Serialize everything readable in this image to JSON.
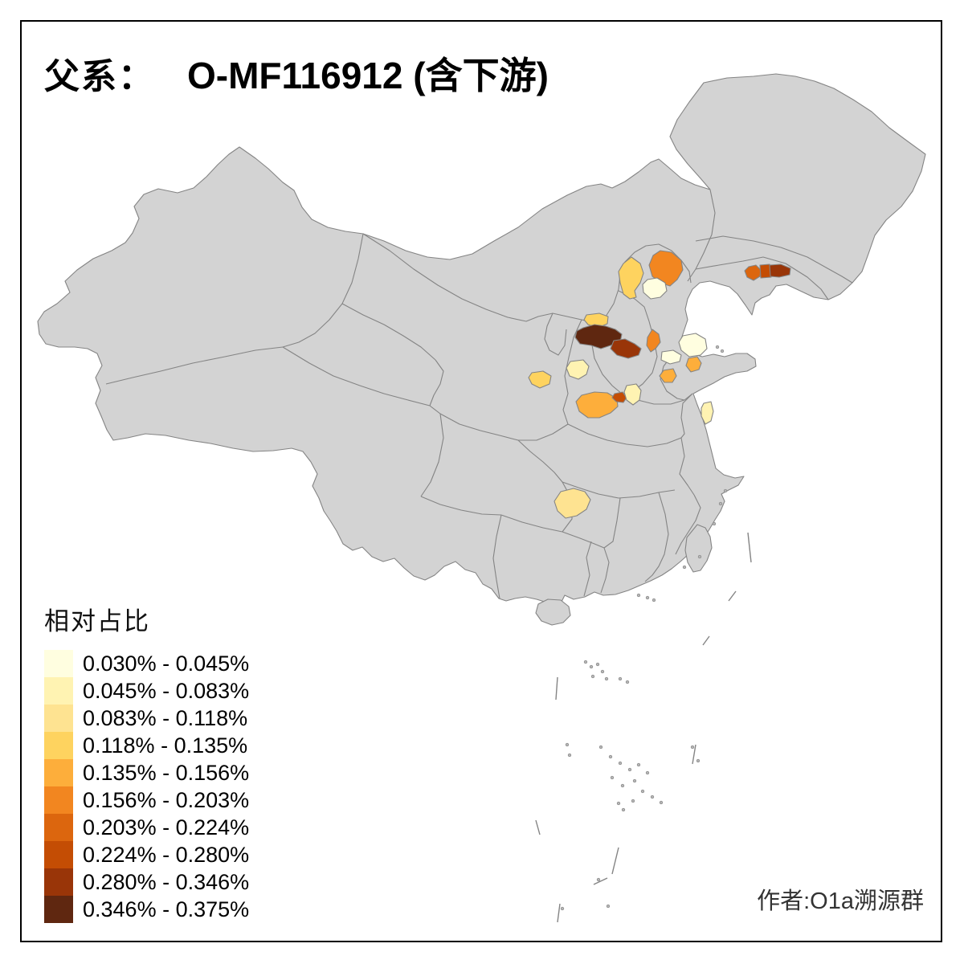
{
  "title": {
    "prefix": "父系：",
    "main": "O-MF116912 (含下游)"
  },
  "attribution": "作者:O1a溯源群",
  "legend": {
    "title": "相对占比",
    "classes": [
      {
        "range": "0.030% - 0.045%",
        "color": "#FFFEE0"
      },
      {
        "range": "0.045% - 0.083%",
        "color": "#FFF3B2"
      },
      {
        "range": "0.083% - 0.118%",
        "color": "#FEE391"
      },
      {
        "range": "0.118% - 0.135%",
        "color": "#FED35F"
      },
      {
        "range": "0.135% - 0.156%",
        "color": "#FDAE3B"
      },
      {
        "range": "0.156% - 0.203%",
        "color": "#F28620"
      },
      {
        "range": "0.203% - 0.224%",
        "color": "#DC660E"
      },
      {
        "range": "0.224% - 0.280%",
        "color": "#C44D04"
      },
      {
        "range": "0.280% - 0.346%",
        "color": "#993508"
      },
      {
        "range": "0.346% - 0.375%",
        "color": "#5F2710"
      }
    ]
  },
  "map": {
    "land_color": "#D3D3D3",
    "border_color": "#848484",
    "sea_color": "#FFFFFF",
    "frame_color": "#000000",
    "regions": [
      {
        "id": "r01",
        "class_index": 4
      },
      {
        "id": "r02",
        "class_index": 6
      },
      {
        "id": "r03",
        "class_index": 1
      },
      {
        "id": "r04",
        "class_index": 6
      },
      {
        "id": "r05",
        "class_index": 7
      },
      {
        "id": "r06",
        "class_index": 8
      },
      {
        "id": "r07",
        "class_index": 9
      },
      {
        "id": "r08",
        "class_index": 4
      },
      {
        "id": "r09",
        "class_index": 10
      },
      {
        "id": "r10",
        "class_index": 9
      },
      {
        "id": "r11",
        "class_index": 2
      },
      {
        "id": "r12",
        "class_index": 4
      },
      {
        "id": "r13",
        "class_index": 5
      },
      {
        "id": "r14",
        "class_index": 8
      },
      {
        "id": "r15",
        "class_index": 2
      },
      {
        "id": "r16",
        "class_index": 1
      },
      {
        "id": "r17",
        "class_index": 1
      },
      {
        "id": "r18",
        "class_index": 5
      },
      {
        "id": "r19",
        "class_index": 5
      },
      {
        "id": "r20",
        "class_index": 2
      },
      {
        "id": "r21",
        "class_index": 3
      }
    ]
  }
}
